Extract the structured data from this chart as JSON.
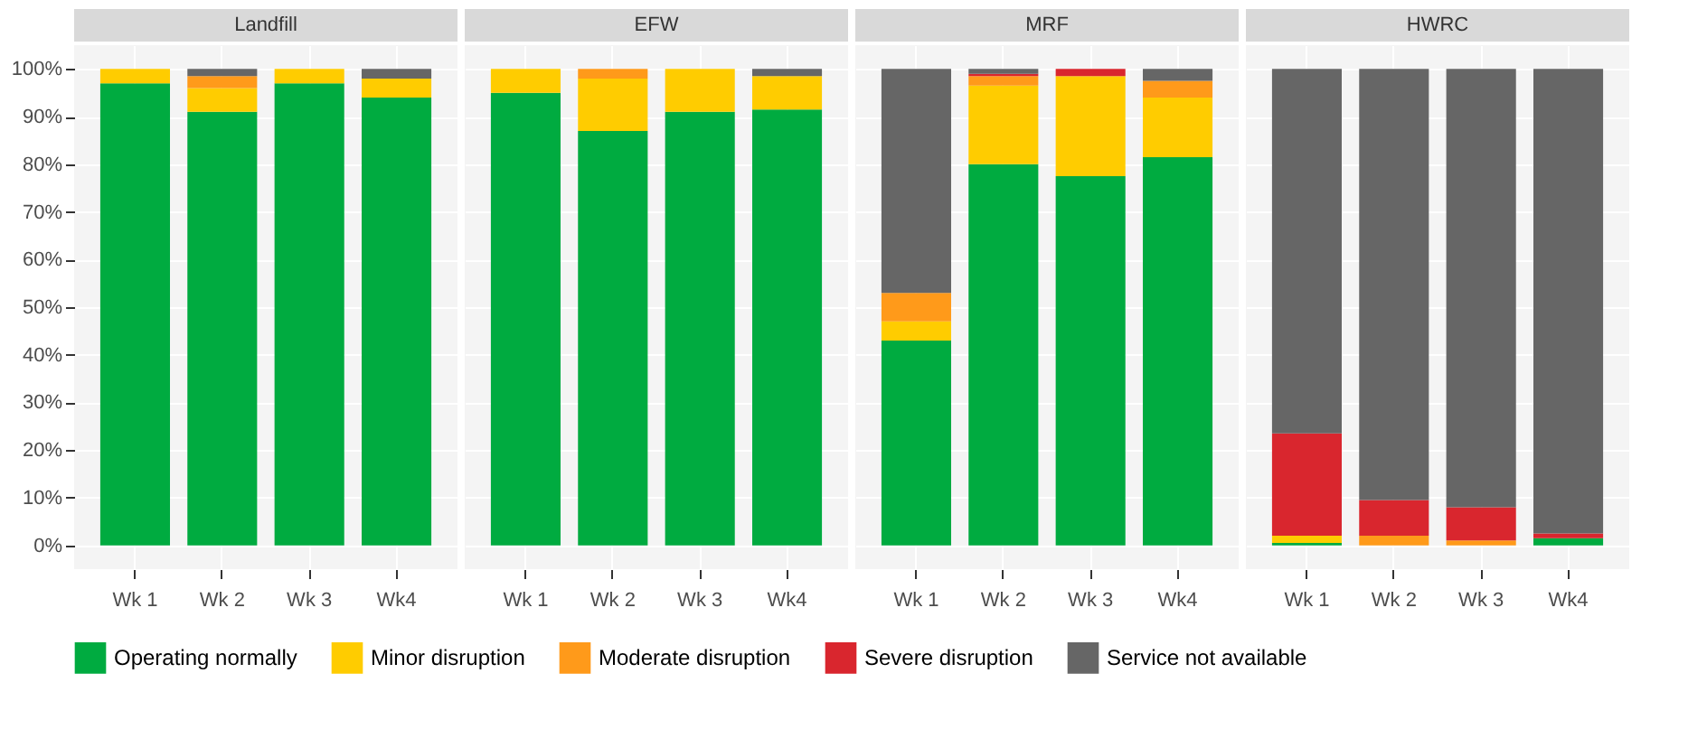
{
  "chart_data": [
    {
      "type": "bar",
      "title": "Landfill",
      "stacked": true,
      "categories": [
        "Wk 1",
        "Wk 2",
        "Wk 3",
        "Wk4"
      ],
      "ylim": [
        -5,
        105
      ],
      "yticks": [
        {
          "value": 0,
          "label": "0%"
        },
        {
          "value": 10,
          "label": "10%"
        },
        {
          "value": 20,
          "label": "20%"
        },
        {
          "value": 30,
          "label": "30%"
        },
        {
          "value": 40,
          "label": "40%"
        },
        {
          "value": 50,
          "label": "50%"
        },
        {
          "value": 60,
          "label": "60%"
        },
        {
          "value": 70,
          "label": "70%"
        },
        {
          "value": 80,
          "label": "80%"
        },
        {
          "value": 90,
          "label": "90%"
        },
        {
          "value": 100,
          "label": "100%"
        }
      ],
      "grid": true,
      "legend": "bottom",
      "series": [
        {
          "name": "Operating normally",
          "color": "#00ab40",
          "values": [
            97,
            91,
            97,
            94
          ]
        },
        {
          "name": "Minor disruption",
          "color": "#ffcc00",
          "values": [
            3,
            5,
            3,
            4
          ]
        },
        {
          "name": "Moderate disruption",
          "color": "#ff9a1a",
          "values": [
            0,
            2.5,
            0,
            0
          ]
        },
        {
          "name": "Severe disruption",
          "color": "#d9262e",
          "values": [
            0,
            0,
            0,
            0
          ]
        },
        {
          "name": "Service not available",
          "color": "#666666",
          "values": [
            0,
            1.5,
            0,
            2
          ]
        }
      ]
    },
    {
      "type": "bar",
      "title": "EFW",
      "stacked": true,
      "categories": [
        "Wk 1",
        "Wk 2",
        "Wk 3",
        "Wk4"
      ],
      "ylim": [
        -5,
        105
      ],
      "yticks": [
        {
          "value": 0,
          "label": null
        },
        {
          "value": 10,
          "label": null
        },
        {
          "value": 20,
          "label": null
        },
        {
          "value": 30,
          "label": null
        },
        {
          "value": 40,
          "label": null
        },
        {
          "value": 50,
          "label": null
        },
        {
          "value": 60,
          "label": null
        },
        {
          "value": 70,
          "label": null
        },
        {
          "value": 80,
          "label": null
        },
        {
          "value": 90,
          "label": null
        },
        {
          "value": 100,
          "label": null
        }
      ],
      "tick_labels": "x",
      "grid": true,
      "series": [
        {
          "color": "#00ab40",
          "values": [
            95,
            87,
            91,
            91.5
          ]
        },
        {
          "color": "#ffcc00",
          "values": [
            5,
            11,
            9,
            7
          ]
        },
        {
          "color": "#ff9a1a",
          "values": [
            0,
            2,
            0,
            0
          ]
        },
        {
          "color": "#d9262e",
          "values": [
            0,
            0,
            0,
            0
          ]
        },
        {
          "color": "#666666",
          "values": [
            0,
            0,
            0,
            1.5
          ]
        }
      ]
    },
    {
      "type": "bar",
      "title": "MRF",
      "stacked": true,
      "categories": [
        "Wk 1",
        "Wk 2",
        "Wk 3",
        "Wk4"
      ],
      "ylim": [
        -5,
        105
      ],
      "yticks": [
        {
          "value": 0,
          "label": null
        },
        {
          "value": 10,
          "label": null
        },
        {
          "value": 20,
          "label": null
        },
        {
          "value": 30,
          "label": null
        },
        {
          "value": 40,
          "label": null
        },
        {
          "value": 50,
          "label": null
        },
        {
          "value": 60,
          "label": null
        },
        {
          "value": 70,
          "label": null
        },
        {
          "value": 80,
          "label": null
        },
        {
          "value": 90,
          "label": null
        },
        {
          "value": 100,
          "label": null
        }
      ],
      "tick_labels": "x",
      "grid": true,
      "series": [
        {
          "color": "#00ab40",
          "values": [
            43,
            80,
            77.5,
            81.5
          ]
        },
        {
          "color": "#ffcc00",
          "values": [
            4,
            16.5,
            21,
            12.5
          ]
        },
        {
          "color": "#ff9a1a",
          "values": [
            6,
            2,
            0,
            3.5
          ]
        },
        {
          "color": "#d9262e",
          "values": [
            0,
            0.5,
            1.5,
            0
          ]
        },
        {
          "color": "#666666",
          "values": [
            47,
            1,
            0,
            2.5
          ]
        }
      ]
    },
    {
      "type": "bar",
      "title": "HWRC",
      "stacked": true,
      "categories": [
        "Wk 1",
        "Wk 2",
        "Wk 3",
        "Wk4"
      ],
      "ylim": [
        -5,
        105
      ],
      "yticks": [
        {
          "value": 0,
          "label": null
        },
        {
          "value": 10,
          "label": null
        },
        {
          "value": 20,
          "label": null
        },
        {
          "value": 30,
          "label": null
        },
        {
          "value": 40,
          "label": null
        },
        {
          "value": 50,
          "label": null
        },
        {
          "value": 60,
          "label": null
        },
        {
          "value": 70,
          "label": null
        },
        {
          "value": 80,
          "label": null
        },
        {
          "value": 90,
          "label": null
        },
        {
          "value": 100,
          "label": null
        }
      ],
      "tick_labels": "x",
      "grid": true,
      "series": [
        {
          "color": "#00ab40",
          "values": [
            0.5,
            0,
            0,
            1.5
          ]
        },
        {
          "color": "#ffcc00",
          "values": [
            1.5,
            0,
            0,
            0
          ]
        },
        {
          "color": "#ff9a1a",
          "values": [
            0,
            2,
            1,
            0
          ]
        },
        {
          "color": "#d9262e",
          "values": [
            21.5,
            7.5,
            7,
            1
          ]
        },
        {
          "color": "#666666",
          "values": [
            76.5,
            90.5,
            92,
            97.5
          ]
        }
      ]
    }
  ]
}
